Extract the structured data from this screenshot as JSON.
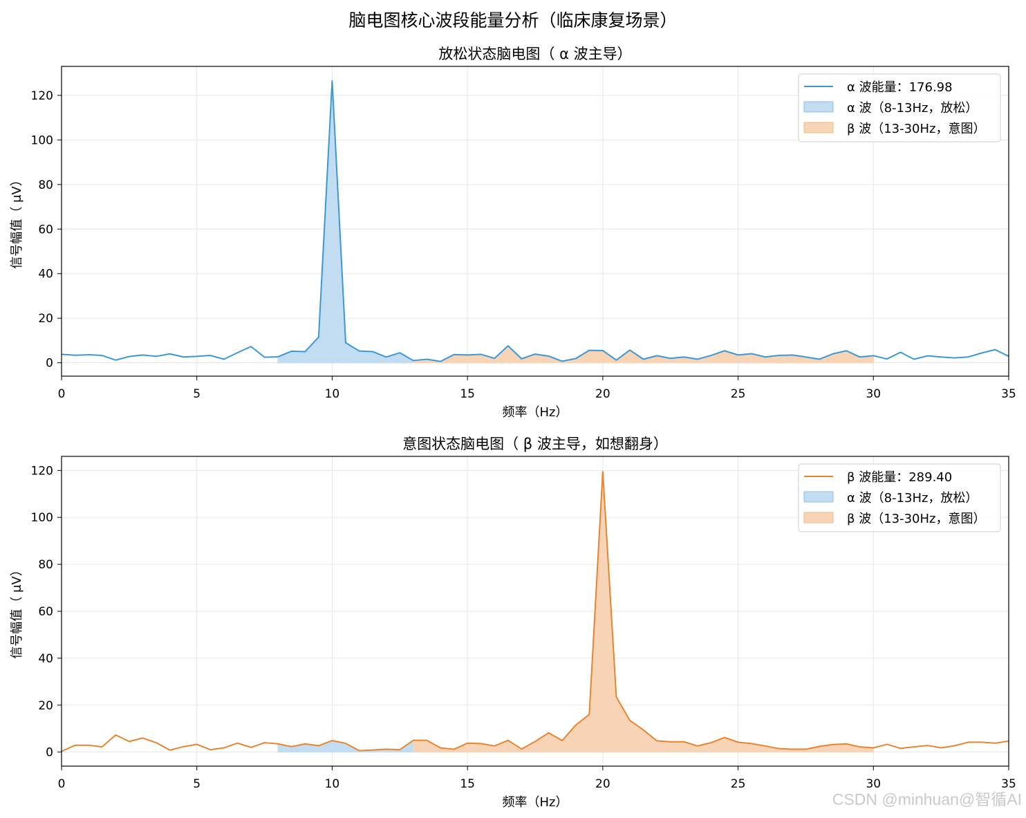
{
  "figure": {
    "suptitle": "脑电图核心波段能量分析（临床康复场景）",
    "watermark": "CSDN @minhuan@智循AI"
  },
  "colors": {
    "alpha_line": "#3a97d8",
    "beta_line": "#e8832e",
    "alpha_fill": "#c2ddf2",
    "beta_fill": "#f7d4b6",
    "grid": "#e6e6e6"
  },
  "chart_data": [
    {
      "type": "line",
      "title": "放松状态脑电图（ α 波主导）",
      "xlabel": "频率（Hz）",
      "ylabel": "信号幅值（ μV）",
      "xlim": [
        0,
        35
      ],
      "ylim": [
        -6,
        133
      ],
      "xticks": [
        0,
        5,
        10,
        15,
        20,
        25,
        30,
        35
      ],
      "yticks": [
        0,
        20,
        40,
        60,
        80,
        100,
        120
      ],
      "grid": true,
      "legend_position": "top-right",
      "line_color": "#3a97d8",
      "series": [
        {
          "name": "α 波能量：176.98",
          "x": [
            0,
            0.5,
            1,
            1.5,
            2,
            2.5,
            3,
            3.5,
            4,
            4.5,
            5,
            5.5,
            6,
            6.5,
            7,
            7.5,
            8,
            8.5,
            9,
            9.5,
            10,
            10.5,
            11,
            11.5,
            12,
            12.5,
            13,
            13.5,
            14,
            14.5,
            15,
            15.5,
            16,
            16.5,
            17,
            17.5,
            18,
            18.5,
            19,
            19.5,
            20,
            20.5,
            21,
            21.5,
            22,
            22.5,
            23,
            23.5,
            24,
            24.5,
            25,
            25.5,
            26,
            26.5,
            27,
            27.5,
            28,
            28.5,
            29,
            29.5,
            30,
            30.5,
            31,
            31.5,
            32,
            32.5,
            33,
            33.5,
            34,
            34.5,
            35
          ],
          "y": [
            3.8,
            3.4,
            3.6,
            3.3,
            1.2,
            2.8,
            3.5,
            2.9,
            4.0,
            2.6,
            2.9,
            3.3,
            1.6,
            4.5,
            7.3,
            2.5,
            2.7,
            5.2,
            5.0,
            11.5,
            126.5,
            9.0,
            5.3,
            5.0,
            2.6,
            4.5,
            1.0,
            1.6,
            0.6,
            3.7,
            3.5,
            3.8,
            2.0,
            7.6,
            1.8,
            3.9,
            3.0,
            0.7,
            1.9,
            5.6,
            5.5,
            1.2,
            5.7,
            1.6,
            3.2,
            2.0,
            2.6,
            1.6,
            3.3,
            5.4,
            3.5,
            4.1,
            2.6,
            3.3,
            3.5,
            2.6,
            1.6,
            4.0,
            5.4,
            2.6,
            3.2,
            1.7,
            4.7,
            1.6,
            3.1,
            2.6,
            2.2,
            2.6,
            4.4,
            5.9,
            2.9
          ]
        }
      ],
      "bands": [
        {
          "name": "α 波（8-13Hz，放松）",
          "range": [
            8,
            13
          ],
          "color": "#c2ddf2"
        },
        {
          "name": "β 波（13-30Hz，意图）",
          "range": [
            13,
            30
          ],
          "color": "#f7d4b6"
        }
      ]
    },
    {
      "type": "line",
      "title": "意图状态脑电图（ β 波主导，如想翻身）",
      "xlabel": "频率（Hz）",
      "ylabel": "信号幅值（ μV）",
      "xlim": [
        0,
        35
      ],
      "ylim": [
        -6,
        126
      ],
      "xticks": [
        0,
        5,
        10,
        15,
        20,
        25,
        30,
        35
      ],
      "yticks": [
        0,
        20,
        40,
        60,
        80,
        100,
        120
      ],
      "grid": true,
      "legend_position": "top-right",
      "line_color": "#e8832e",
      "series": [
        {
          "name": "β 波能量：289.40",
          "x": [
            0,
            0.5,
            1,
            1.5,
            2,
            2.5,
            3,
            3.5,
            4,
            4.5,
            5,
            5.5,
            6,
            6.5,
            7,
            7.5,
            8,
            8.5,
            9,
            9.5,
            10,
            10.5,
            11,
            11.5,
            12,
            12.5,
            13,
            13.5,
            14,
            14.5,
            15,
            15.5,
            16,
            16.5,
            17,
            17.5,
            18,
            18.5,
            19,
            19.5,
            20,
            20.5,
            21,
            21.5,
            22,
            22.5,
            23,
            23.5,
            24,
            24.5,
            25,
            25.5,
            26,
            26.5,
            27,
            27.5,
            28,
            28.5,
            29,
            29.5,
            30,
            30.5,
            31,
            31.5,
            32,
            32.5,
            33,
            33.5,
            34,
            34.5,
            35
          ],
          "y": [
            0.3,
            2.9,
            2.9,
            2.2,
            7.3,
            4.5,
            6.0,
            4.0,
            0.8,
            2.3,
            3.3,
            1.0,
            1.8,
            3.8,
            2.0,
            4.0,
            3.5,
            2.3,
            3.5,
            2.7,
            4.9,
            3.7,
            0.6,
            0.9,
            1.2,
            1.0,
            5.0,
            5.0,
            1.8,
            1.2,
            3.8,
            3.6,
            2.6,
            5.0,
            1.3,
            4.5,
            8.2,
            4.9,
            11.5,
            16.0,
            119.5,
            23.5,
            13.5,
            9.4,
            4.8,
            4.4,
            4.4,
            2.6,
            4.0,
            6.2,
            4.2,
            3.6,
            2.6,
            1.5,
            1.2,
            1.2,
            2.4,
            3.2,
            3.5,
            2.2,
            1.8,
            3.3,
            1.6,
            2.2,
            2.8,
            1.8,
            2.7,
            4.2,
            4.2,
            3.8,
            4.7
          ]
        }
      ],
      "bands": [
        {
          "name": "α 波（8-13Hz，放松）",
          "range": [
            8,
            13
          ],
          "color": "#c2ddf2"
        },
        {
          "name": "β 波（13-30Hz，意图）",
          "range": [
            13,
            30
          ],
          "color": "#f7d4b6"
        }
      ]
    }
  ]
}
